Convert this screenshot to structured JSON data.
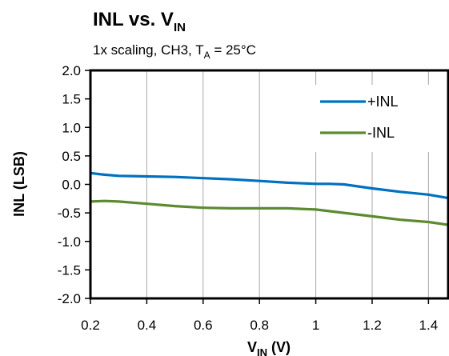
{
  "chart_data": {
    "type": "line",
    "title": {
      "main": "INL vs. V",
      "sub": "IN"
    },
    "subtitle": {
      "pre": "1x scaling, CH3, T",
      "sub": "A",
      "post": " = 25°C"
    },
    "xlabel": {
      "main": "V",
      "sub": "IN",
      "post": " (V)"
    },
    "ylabel": "INL (LSB)",
    "xlim": [
      0.2,
      1.47
    ],
    "ylim": [
      -2.0,
      2.0
    ],
    "xticks": [
      "0.2",
      "0.4",
      "0.6",
      "0.8",
      "1",
      "1.2",
      "1.4"
    ],
    "xtick_values": [
      0.2,
      0.4,
      0.6,
      0.8,
      1.0,
      1.2,
      1.4
    ],
    "yticks": [
      "2.0",
      "1.5",
      "1.0",
      "0.5",
      "0.0",
      "-0.5",
      "-1.0",
      "-1.5",
      "-2.0"
    ],
    "ytick_values": [
      2.0,
      1.5,
      1.0,
      0.5,
      0.0,
      -0.5,
      -1.0,
      -1.5,
      -2.0
    ],
    "grid": {
      "vertical": true,
      "horizontal": false
    },
    "legend_position": "top-right",
    "series": [
      {
        "name": "+INL",
        "color": "#0070c0",
        "x": [
          0.2,
          0.25,
          0.3,
          0.4,
          0.5,
          0.6,
          0.7,
          0.8,
          0.9,
          1.0,
          1.05,
          1.1,
          1.2,
          1.3,
          1.4,
          1.47
        ],
        "y": [
          0.2,
          0.17,
          0.15,
          0.14,
          0.13,
          0.11,
          0.09,
          0.06,
          0.03,
          0.01,
          0.01,
          0.0,
          -0.07,
          -0.13,
          -0.18,
          -0.24
        ]
      },
      {
        "name": "-INL",
        "color": "#5c8a30",
        "x": [
          0.2,
          0.25,
          0.3,
          0.4,
          0.5,
          0.6,
          0.7,
          0.8,
          0.9,
          1.0,
          1.1,
          1.2,
          1.3,
          1.4,
          1.47
        ],
        "y": [
          -0.3,
          -0.29,
          -0.3,
          -0.34,
          -0.38,
          -0.41,
          -0.42,
          -0.42,
          -0.42,
          -0.44,
          -0.5,
          -0.56,
          -0.62,
          -0.66,
          -0.71
        ]
      }
    ]
  }
}
